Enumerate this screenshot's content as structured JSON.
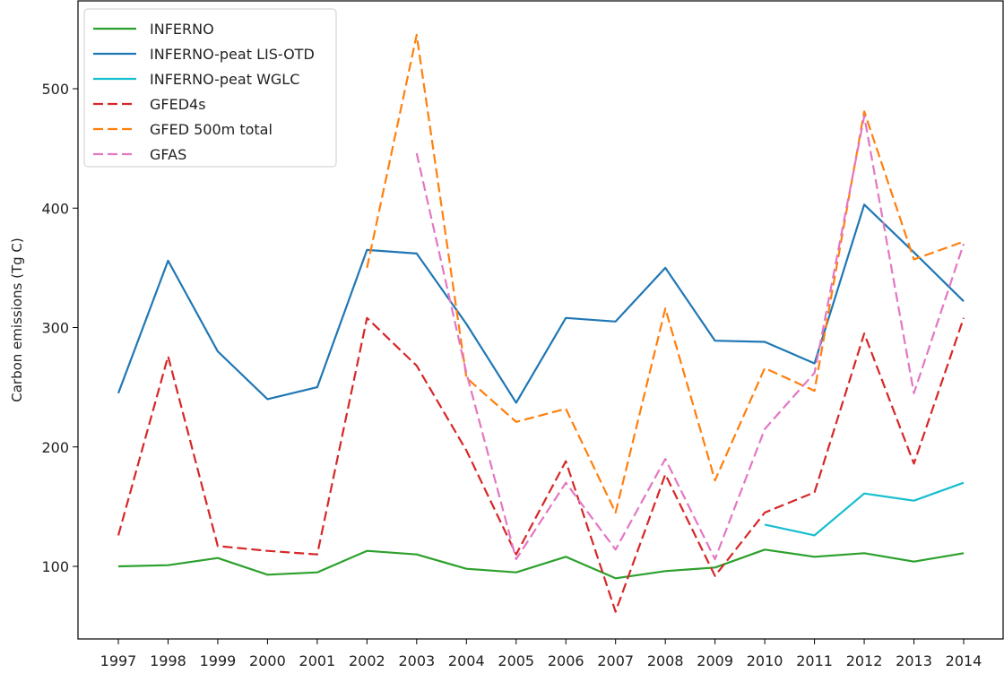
{
  "chart_data": {
    "type": "line",
    "title": "",
    "xlabel": "",
    "ylabel": "Carbon emissions (Tg C)",
    "x": [
      "1997",
      "1998",
      "1999",
      "2000",
      "2001",
      "2002",
      "2003",
      "2004",
      "2005",
      "2006",
      "2007",
      "2008",
      "2009",
      "2010",
      "2011",
      "2012",
      "2013",
      "2014"
    ],
    "ylim": [
      40,
      560
    ],
    "yticks": [
      100,
      200,
      300,
      400,
      500
    ],
    "grid": false,
    "legend_position": "top-left",
    "series": [
      {
        "name": "INFERNO",
        "color": "#2ca02c",
        "dash": "solid",
        "values": [
          100,
          101,
          107,
          93,
          95,
          113,
          110,
          98,
          95,
          108,
          90,
          96,
          99,
          114,
          108,
          111,
          104,
          111
        ]
      },
      {
        "name": "INFERNO-peat LIS-OTD",
        "color": "#1f77b4",
        "dash": "solid",
        "values": [
          245,
          356,
          280,
          240,
          250,
          365,
          362,
          303,
          237,
          308,
          305,
          350,
          289,
          288,
          270,
          403,
          363,
          322
        ]
      },
      {
        "name": "INFERNO-peat WGLC",
        "color": "#17becf",
        "dash": "solid",
        "values": [
          null,
          null,
          null,
          null,
          null,
          null,
          null,
          null,
          null,
          null,
          null,
          null,
          null,
          135,
          126,
          161,
          155,
          170
        ]
      },
      {
        "name": "GFED4s",
        "color": "#d62728",
        "dash": "dashed",
        "values": [
          126,
          276,
          117,
          113,
          110,
          308,
          268,
          197,
          110,
          188,
          62,
          177,
          92,
          145,
          162,
          295,
          186,
          308
        ]
      },
      {
        "name": "GFED 500m total",
        "color": "#ff7f0e",
        "dash": "dashed",
        "values": [
          null,
          null,
          null,
          null,
          null,
          350,
          545,
          258,
          221,
          232,
          145,
          316,
          172,
          266,
          247,
          481,
          357,
          372
        ]
      },
      {
        "name": "GFAS",
        "color": "#e377c2",
        "dash": "dashed",
        "values": [
          null,
          null,
          null,
          null,
          null,
          null,
          446,
          262,
          106,
          170,
          114,
          190,
          106,
          215,
          262,
          477,
          245,
          370
        ]
      }
    ]
  }
}
